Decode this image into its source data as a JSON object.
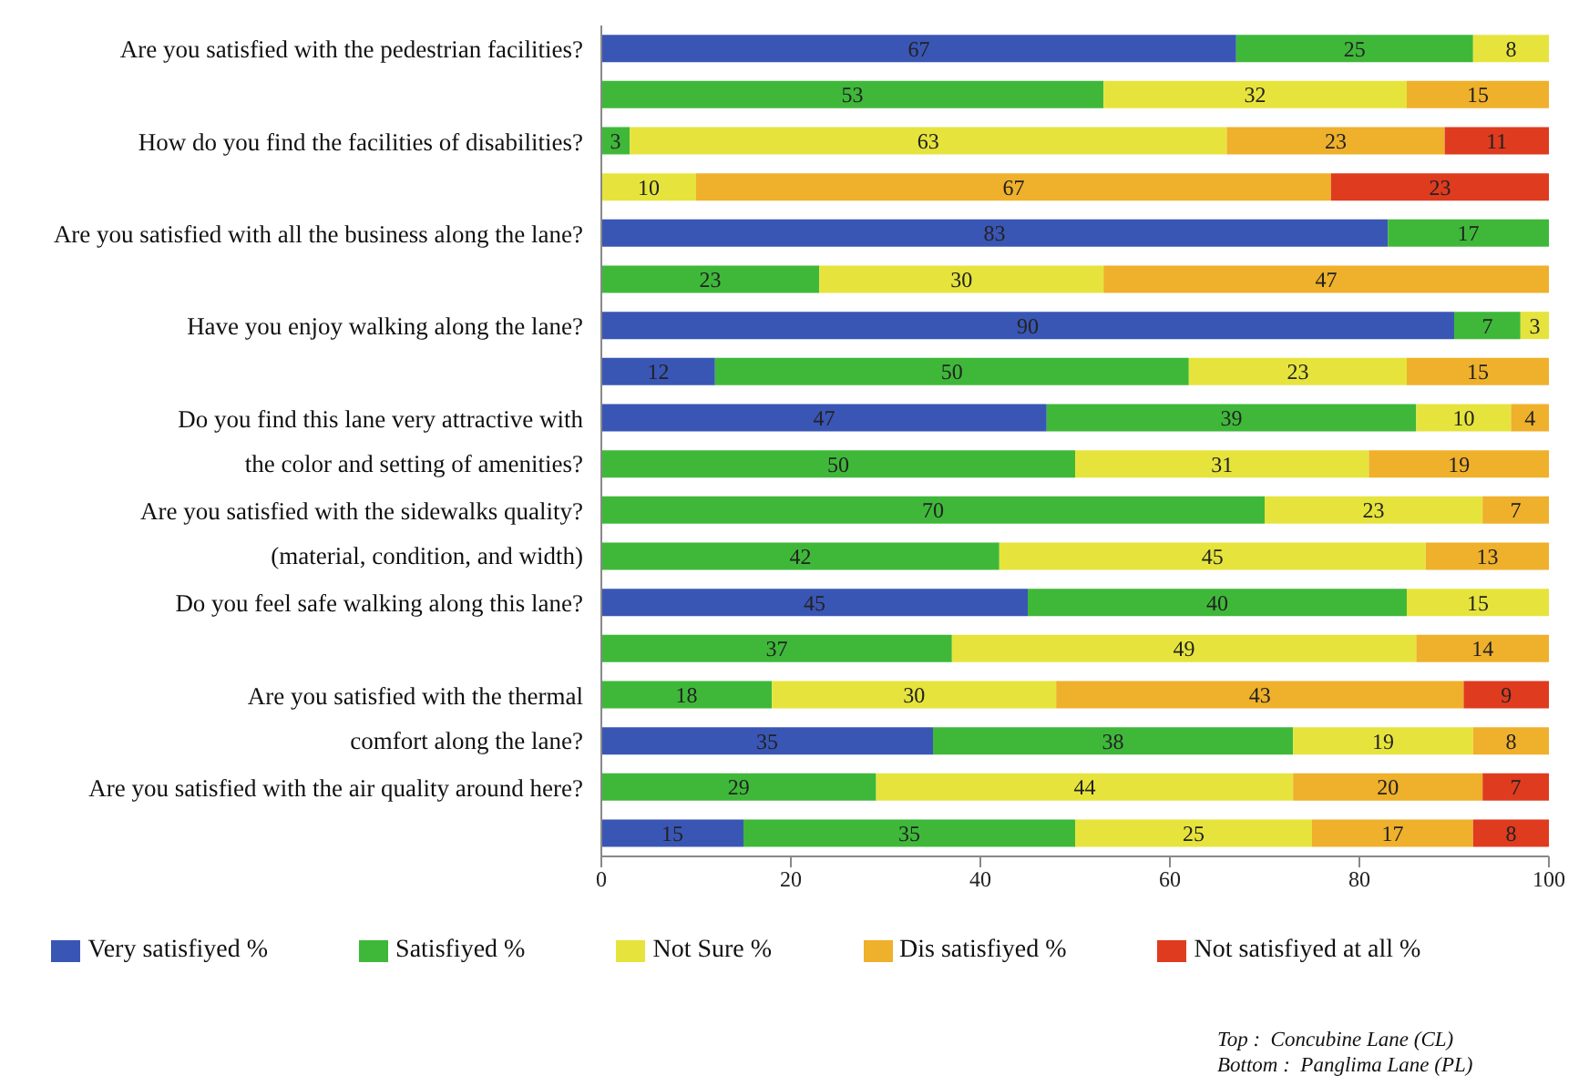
{
  "chart_data": {
    "type": "bar",
    "orientation": "horizontal",
    "stacked": true,
    "data_labels": true,
    "legend": "bottom",
    "categories": [
      "Are you satisfied with the pedestrian facilities?",
      null,
      "How do you find the facilities of disabilities?",
      null,
      "Are you satisfied with all the business along the lane?",
      null,
      "Have you enjoy walking along the lane?",
      null,
      "Do you find this lane very attractive with\nthe color and setting of amenities?",
      null,
      "Are you satisfied with the sidewalks quality?\n(material, condition, and width)",
      null,
      "Do you feel safe walking along this lane?",
      null,
      "Are you satisfied with the thermal\ncomfort along the lane?",
      null,
      "Are you satisfied with the air quality around here?",
      null
    ],
    "series": [
      {
        "name": "Very satisfiyed %",
        "color": "#3a56b4",
        "values": [
          67,
          null,
          null,
          null,
          83,
          null,
          90,
          12,
          47,
          null,
          null,
          null,
          45,
          null,
          null,
          35,
          null,
          15
        ]
      },
      {
        "name": "Satisfiyed %",
        "color": "#3fb83a",
        "values": [
          25,
          53,
          3,
          null,
          17,
          23,
          7,
          50,
          39,
          50,
          70,
          42,
          40,
          37,
          18,
          38,
          29,
          35
        ]
      },
      {
        "name": "Not Sure %",
        "color": "#e6e43c",
        "values": [
          8,
          32,
          63,
          10,
          null,
          30,
          3,
          23,
          10,
          31,
          23,
          45,
          15,
          49,
          30,
          19,
          44,
          25
        ]
      },
      {
        "name": "Dis satisfiyed %",
        "color": "#efb02b",
        "values": [
          null,
          15,
          23,
          67,
          null,
          47,
          null,
          15,
          4,
          19,
          7,
          13,
          null,
          14,
          43,
          8,
          20,
          17
        ]
      },
      {
        "name": "Not satisfiyed at all %",
        "color": "#df3b1f",
        "values": [
          null,
          null,
          11,
          23,
          null,
          null,
          null,
          null,
          null,
          null,
          null,
          null,
          null,
          null,
          9,
          null,
          7,
          8
        ]
      }
    ],
    "xlim": [
      0,
      100
    ],
    "xticks": [
      0,
      20,
      40,
      60,
      80,
      100
    ],
    "annotations": [
      "Top :  Concubine Lane (CL)",
      "Bottom :  Panglima Lane (PL)"
    ]
  }
}
